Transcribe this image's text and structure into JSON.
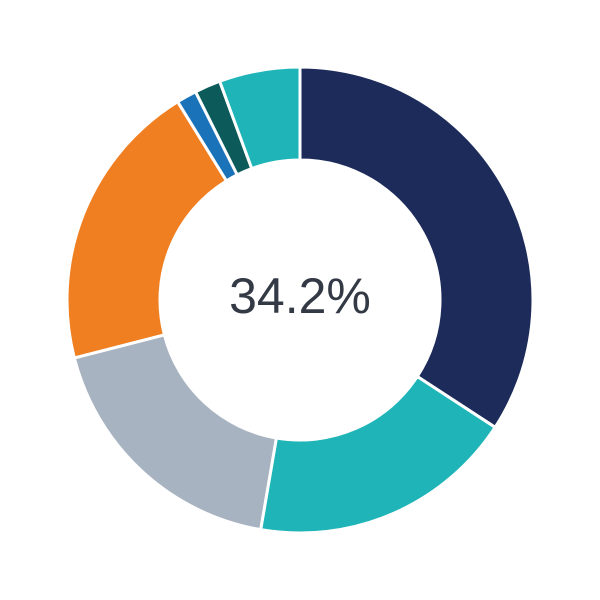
{
  "chart_data": {
    "type": "donut",
    "categories": [
      null,
      null,
      null,
      null,
      null,
      null,
      null
    ],
    "values": [
      34.2,
      18.5,
      18.3,
      20.2,
      1.4,
      1.8,
      5.6
    ],
    "colors": [
      "#1c2b5a",
      "#1fb5b8",
      "#a8b3c2",
      "#f07f22",
      "#1a73b8",
      "#0d5a5a",
      "#1fb5b8"
    ],
    "center_label": "34.2%"
  }
}
